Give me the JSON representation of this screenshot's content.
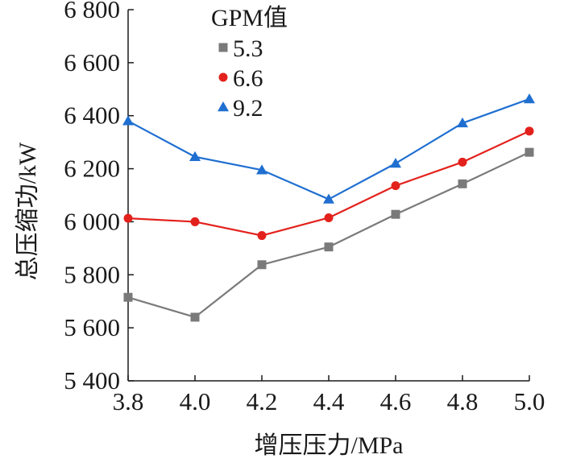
{
  "chart_data": {
    "type": "line",
    "xlabel": "增压压力/MPa",
    "ylabel": "总压缩功/kW",
    "xlim": [
      3.8,
      5.0
    ],
    "ylim": [
      5400,
      6800
    ],
    "x": [
      3.8,
      4.0,
      4.2,
      4.4,
      4.6,
      4.8,
      5.0
    ],
    "x_tick_labels": [
      "3.8",
      "4.0",
      "4.2",
      "4.4",
      "4.6",
      "4.8",
      "5.0"
    ],
    "y_ticks": [
      5400,
      5600,
      5800,
      6000,
      6200,
      6400,
      6600,
      6800
    ],
    "y_tick_labels": [
      "5 400",
      "5 600",
      "5 800",
      "6 000",
      "6 200",
      "6 400",
      "6 600",
      "6 800"
    ],
    "grid": false,
    "legend": {
      "title": "GPM值",
      "placement": "top-center"
    },
    "series": [
      {
        "name": "5.3",
        "color": "#7a7a7a",
        "marker": "square",
        "values": [
          5715,
          5640,
          5838,
          5905,
          6028,
          6143,
          6262
        ]
      },
      {
        "name": "6.6",
        "color": "#e3211c",
        "marker": "circle",
        "values": [
          6013,
          6000,
          5948,
          6015,
          6136,
          6225,
          6342
        ]
      },
      {
        "name": "9.2",
        "color": "#1f6fd1",
        "marker": "triangle",
        "values": [
          6380,
          6245,
          6195,
          6085,
          6220,
          6372,
          6463
        ]
      }
    ]
  }
}
